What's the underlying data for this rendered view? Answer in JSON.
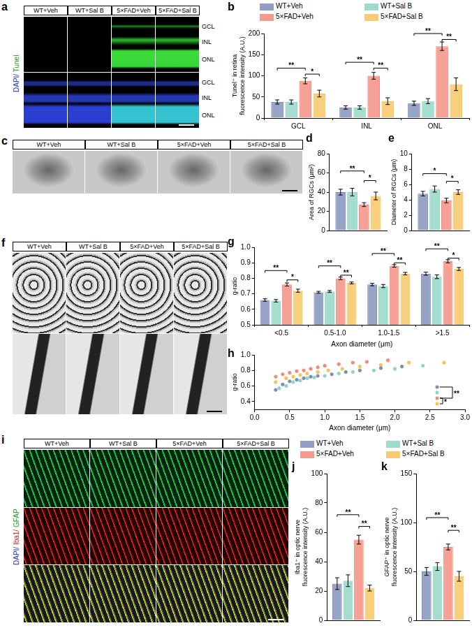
{
  "images": [
    {
      "panel": "a",
      "columns": [
        "WT+Veh",
        "WT+Sal B",
        "5×FAD+Veh",
        "5×FAD+Sal B"
      ],
      "channel_label": "DAPI/ Tunel",
      "layers": [
        "GCL",
        "INL",
        "ONL"
      ]
    },
    {
      "panel": "c",
      "columns": [
        "WT+Veh",
        "WT+Sal B",
        "5×FAD+Veh",
        "5×FAD+Sal B"
      ]
    },
    {
      "panel": "f",
      "columns": [
        "WT+Veh",
        "WT+Sal B",
        "5×FAD+Veh",
        "5×FAD+Sal B"
      ]
    },
    {
      "panel": "i",
      "columns": [
        "WT+Veh",
        "WT+Sal B",
        "5×FAD+Veh",
        "5×FAD+Sal B"
      ],
      "channel_label": "DAPI/ Iba1/ GFAP"
    }
  ],
  "chart_data": [
    {
      "panel": "b",
      "type": "bar",
      "categories": [
        "GCL",
        "INL",
        "ONL"
      ],
      "y_label": [
        "Tunel⁺ in retina",
        "fluorescence intensity (A.U.)"
      ],
      "ylim": [
        0,
        200
      ],
      "yticks": [
        0,
        50,
        100,
        150,
        200
      ],
      "grid": false,
      "legend": "top",
      "series": [
        {
          "name": "WT+Veh",
          "color": "#7e8db8",
          "values": [
            38,
            25,
            35
          ],
          "errors": [
            5,
            4,
            5
          ]
        },
        {
          "name": "WT+Sal B",
          "color": "#8fd5c3",
          "values": [
            38,
            25,
            40
          ],
          "errors": [
            5,
            4,
            6
          ]
        },
        {
          "name": "5×FAD+Veh",
          "color": "#f4897b",
          "values": [
            88,
            100,
            170
          ],
          "errors": [
            7,
            8,
            10
          ]
        },
        {
          "name": "5×FAD+Sal B",
          "color": "#f5c35c",
          "values": [
            58,
            40,
            80
          ],
          "errors": [
            8,
            8,
            15
          ]
        }
      ],
      "annotations": [
        {
          "text": "**",
          "category": 0,
          "from": 0,
          "to": 2,
          "y": 118
        },
        {
          "text": "*",
          "category": 0,
          "from": 2,
          "to": 3,
          "y": 104
        },
        {
          "text": "**",
          "category": 1,
          "from": 0,
          "to": 2,
          "y": 132
        },
        {
          "text": "**",
          "category": 1,
          "from": 2,
          "to": 3,
          "y": 118
        },
        {
          "text": "**",
          "category": 2,
          "from": 0,
          "to": 2,
          "y": 200
        },
        {
          "text": "**",
          "category": 2,
          "from": 2,
          "to": 3,
          "y": 186
        }
      ]
    },
    {
      "panel": "d",
      "type": "bar",
      "categories": [
        null
      ],
      "tick_labels": "y",
      "y_label": "Area of RGCs (μm²)",
      "ylim": [
        0,
        80
      ],
      "yticks": [
        0,
        20,
        40,
        60,
        80
      ],
      "grid": false,
      "series": [
        {
          "name": "WT+Veh",
          "color": "#7e8db8",
          "values": [
            40
          ],
          "errors": [
            3
          ]
        },
        {
          "name": "WT+Sal B",
          "color": "#8fd5c3",
          "values": [
            40
          ],
          "errors": [
            4
          ]
        },
        {
          "name": "5×FAD+Veh",
          "color": "#f4897b",
          "values": [
            27
          ],
          "errors": [
            2
          ]
        },
        {
          "name": "5×FAD+Sal B",
          "color": "#f5c35c",
          "values": [
            36
          ],
          "errors": [
            4
          ]
        }
      ],
      "annotations": [
        {
          "text": "**",
          "category": 0,
          "from": 0,
          "to": 2,
          "y": 62
        },
        {
          "text": "*",
          "category": 0,
          "from": 2,
          "to": 3,
          "y": 52
        }
      ]
    },
    {
      "panel": "e",
      "type": "bar",
      "categories": [
        null
      ],
      "tick_labels": "y",
      "y_label": "Diameter of RGCs (μm)",
      "ylim": [
        0,
        10
      ],
      "yticks": [
        0,
        2,
        4,
        6,
        8,
        10
      ],
      "grid": false,
      "series": [
        {
          "name": "WT+Veh",
          "color": "#7e8db8",
          "values": [
            4.8
          ],
          "errors": [
            0.3
          ]
        },
        {
          "name": "WT+Sal B",
          "color": "#8fd5c3",
          "values": [
            5.4
          ],
          "errors": [
            0.4
          ]
        },
        {
          "name": "5×FAD+Veh",
          "color": "#f4897b",
          "values": [
            3.9
          ],
          "errors": [
            0.3
          ]
        },
        {
          "name": "5×FAD+Sal B",
          "color": "#f5c35c",
          "values": [
            5.0
          ],
          "errors": [
            0.3
          ]
        }
      ],
      "annotations": [
        {
          "text": "*",
          "category": 0,
          "from": 0,
          "to": 2,
          "y": 7.4
        },
        {
          "text": "*",
          "category": 0,
          "from": 2,
          "to": 3,
          "y": 6.4
        }
      ]
    },
    {
      "panel": "g",
      "type": "bar",
      "categories": [
        "<0.5",
        "0.5-1.0",
        "1.0-1.5",
        ">1.5"
      ],
      "x_label": "Axon diameter (μm)",
      "y_label": "g-ratio",
      "ylim": [
        0.5,
        1
      ],
      "yticks": [
        0.5,
        0.6,
        0.7,
        0.8,
        0.9,
        {
          "value": 1,
          "label": "1.0"
        }
      ],
      "grid": false,
      "series": [
        {
          "name": "WT+Veh",
          "color": "#7e8db8",
          "values": [
            0.66,
            0.71,
            0.76,
            0.83
          ],
          "errors": [
            0.008,
            0.006,
            0.008,
            0.01
          ],
          "n": [
            105,
            172,
            77,
            49
          ]
        },
        {
          "name": "WT+Sal B",
          "color": "#8fd5c3",
          "values": [
            0.655,
            0.715,
            0.75,
            0.81
          ],
          "errors": [
            0.008,
            0.006,
            0.01,
            0.012
          ],
          "n": [
            95,
            167,
            61,
            52
          ]
        },
        {
          "name": "5×FAD+Veh",
          "color": "#f4897b",
          "values": [
            0.76,
            0.8,
            0.88,
            0.91
          ],
          "errors": [
            0.01,
            0.008,
            0.008,
            0.01
          ],
          "n": [
            120,
            121,
            25,
            17
          ]
        },
        {
          "name": "5×FAD+Sal B",
          "color": "#f5c35c",
          "values": [
            0.72,
            0.77,
            0.83,
            0.86
          ],
          "errors": [
            0.01,
            0.006,
            0.008,
            0.01
          ],
          "n": [
            96,
            128,
            73,
            46
          ]
        }
      ],
      "annotations": [
        {
          "text": "**",
          "category": 0,
          "from": 0,
          "to": 2,
          "y": 0.85
        },
        {
          "text": "*",
          "category": 0,
          "from": 2,
          "to": 3,
          "y": 0.79
        },
        {
          "text": "**",
          "category": 1,
          "from": 0,
          "to": 2,
          "y": 0.88
        },
        {
          "text": "**",
          "category": 1,
          "from": 2,
          "to": 3,
          "y": 0.82
        },
        {
          "text": "**",
          "category": 2,
          "from": 0,
          "to": 2,
          "y": 0.96
        },
        {
          "text": "**",
          "category": 2,
          "from": 2,
          "to": 3,
          "y": 0.9
        },
        {
          "text": "**",
          "category": 3,
          "from": 0,
          "to": 2,
          "y": 0.99
        },
        {
          "text": "*",
          "category": 3,
          "from": 2,
          "to": 3,
          "y": 0.93
        }
      ]
    },
    {
      "panel": "h",
      "type": "scatter",
      "x_label": "Axon diameter (μm)",
      "y_label": "g-ratio",
      "xlim": [
        0,
        3
      ],
      "xticks": [
        {
          "value": 0,
          "label": "0.0"
        },
        0.5,
        {
          "value": 1,
          "label": "1.0"
        },
        1.5,
        {
          "value": 2,
          "label": "2.0"
        },
        2.5,
        {
          "value": 3,
          "label": "3.0"
        }
      ],
      "ylim": [
        0.3,
        1
      ],
      "yticks": [
        0.4,
        0.6,
        0.8,
        {
          "value": 1,
          "label": "1.0"
        }
      ],
      "grid": false,
      "marker": "circle",
      "series": [
        {
          "name": "WT+Veh",
          "color": "#7e8db8",
          "x": [
            0.3,
            0.4,
            0.5,
            0.6,
            0.7,
            0.8,
            0.9,
            1.1,
            1.3,
            1.5,
            1.8,
            2.1
          ],
          "values": [
            0.55,
            0.62,
            0.66,
            0.68,
            0.7,
            0.72,
            0.73,
            0.75,
            0.78,
            0.8,
            0.83,
            0.85
          ]
        },
        {
          "name": "WT+Sal B",
          "color": "#8fd5c3",
          "x": [
            0.35,
            0.45,
            0.55,
            0.65,
            0.75,
            0.85,
            1.0,
            1.2,
            1.4,
            1.7,
            2.0,
            2.4
          ],
          "values": [
            0.57,
            0.6,
            0.65,
            0.67,
            0.7,
            0.71,
            0.73,
            0.76,
            0.78,
            0.8,
            0.82,
            0.86
          ]
        },
        {
          "name": "5×FAD+Veh",
          "color": "#f4897b",
          "x": [
            0.3,
            0.4,
            0.5,
            0.6,
            0.7,
            0.8,
            0.9,
            1.0,
            1.2,
            1.4,
            1.6,
            1.9
          ],
          "values": [
            0.72,
            0.75,
            0.77,
            0.79,
            0.8,
            0.82,
            0.84,
            0.86,
            0.88,
            0.9,
            0.91,
            0.93
          ]
        },
        {
          "name": "5×FAD+Sal B",
          "color": "#f5c35c",
          "x": [
            0.3,
            0.45,
            0.55,
            0.65,
            0.75,
            0.9,
            1.05,
            1.25,
            1.5,
            1.8,
            2.2,
            2.7
          ],
          "values": [
            0.65,
            0.7,
            0.72,
            0.74,
            0.76,
            0.78,
            0.8,
            0.82,
            0.85,
            0.87,
            0.9,
            0.9
          ]
        }
      ],
      "annotations": [
        {
          "text": "**",
          "from": 0,
          "to": 2
        },
        {
          "text": "*",
          "from": 2,
          "to": 3
        }
      ]
    },
    {
      "panel": "j",
      "type": "bar",
      "categories": [
        null
      ],
      "tick_labels": "y",
      "legend": "top",
      "y_label": [
        "Iba1⁺ in optic nerve",
        "fluorescence intensity (A.U.)"
      ],
      "ylim": [
        0,
        100
      ],
      "yticks": [
        0,
        20,
        40,
        60,
        80,
        100
      ],
      "grid": false,
      "series": [
        {
          "name": "WT+Veh",
          "color": "#7e8db8",
          "values": [
            25
          ],
          "errors": [
            4
          ]
        },
        {
          "name": "WT+Sal B",
          "color": "#8fd5c3",
          "values": [
            27
          ],
          "errors": [
            4
          ]
        },
        {
          "name": "5×FAD+Veh",
          "color": "#f4897b",
          "values": [
            55
          ],
          "errors": [
            3
          ]
        },
        {
          "name": "5×FAD+Sal B",
          "color": "#f5c35c",
          "values": [
            22
          ],
          "errors": [
            2
          ]
        }
      ],
      "annotations": [
        {
          "text": "**",
          "category": 0,
          "from": 0,
          "to": 2,
          "y": 72
        },
        {
          "text": "**",
          "category": 0,
          "from": 2,
          "to": 3,
          "y": 64
        }
      ]
    },
    {
      "panel": "k",
      "type": "bar",
      "categories": [
        null
      ],
      "tick_labels": "y",
      "y_label": [
        "GFAP⁺ in optic nerve",
        "fluorescence intensity (A.U.)"
      ],
      "ylim": [
        0,
        150
      ],
      "yticks": [
        0,
        50,
        100,
        150
      ],
      "grid": false,
      "series": [
        {
          "name": "WT+Veh",
          "color": "#7e8db8",
          "values": [
            50
          ],
          "errors": [
            4
          ]
        },
        {
          "name": "WT+Sal B",
          "color": "#8fd5c3",
          "values": [
            55
          ],
          "errors": [
            4
          ]
        },
        {
          "name": "5×FAD+Veh",
          "color": "#f4897b",
          "values": [
            75
          ],
          "errors": [
            3
          ]
        },
        {
          "name": "5×FAD+Sal B",
          "color": "#f5c35c",
          "values": [
            45
          ],
          "errors": [
            5
          ]
        }
      ],
      "annotations": [
        {
          "text": "**",
          "category": 0,
          "from": 0,
          "to": 2,
          "y": 105
        },
        {
          "text": "**",
          "category": 0,
          "from": 2,
          "to": 3,
          "y": 92
        }
      ]
    }
  ]
}
